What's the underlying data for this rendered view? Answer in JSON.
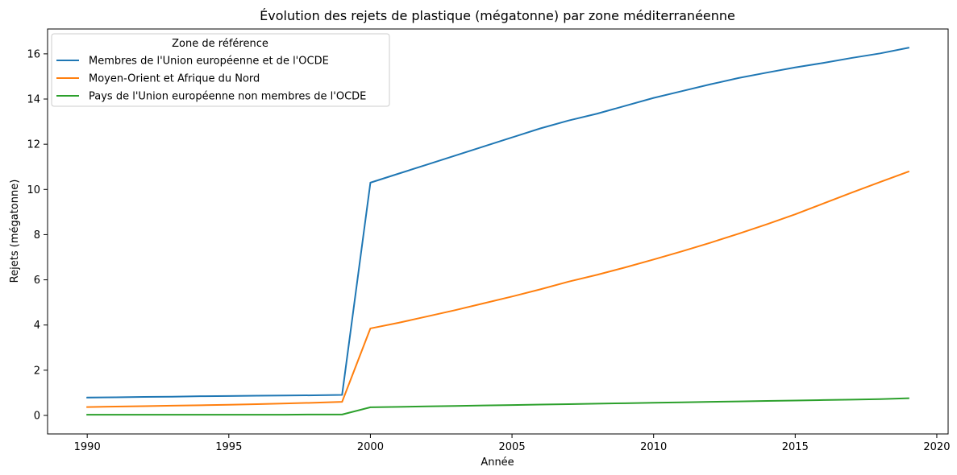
{
  "chart_data": {
    "type": "line",
    "title": "Évolution des rejets de plastique (mégatonne) par zone méditerranéenne",
    "xlabel": "Année",
    "ylabel": "Rejets (mégatonne)",
    "xlim": [
      1988.6,
      2020.4
    ],
    "ylim": [
      -0.82,
      17.1
    ],
    "xticks": [
      1990,
      1995,
      2000,
      2005,
      2010,
      2015,
      2020
    ],
    "yticks": [
      0,
      2,
      4,
      6,
      8,
      10,
      12,
      14,
      16
    ],
    "grid": false,
    "legend": {
      "title": "Zone de référence",
      "placement": "top-left"
    },
    "x": [
      1990,
      1991,
      1992,
      1993,
      1994,
      1995,
      1996,
      1997,
      1998,
      1999,
      2000,
      2001,
      2002,
      2003,
      2004,
      2005,
      2006,
      2007,
      2008,
      2009,
      2010,
      2011,
      2012,
      2013,
      2014,
      2015,
      2016,
      2017,
      2018,
      2019
    ],
    "series": [
      {
        "name": "Membres de l'Union européenne et de l'OCDE",
        "color": "#1f77b4",
        "values": [
          0.79,
          0.8,
          0.82,
          0.83,
          0.85,
          0.86,
          0.87,
          0.88,
          0.89,
          0.91,
          10.3,
          10.7,
          11.1,
          11.5,
          11.9,
          12.3,
          12.7,
          13.05,
          13.35,
          13.7,
          14.05,
          14.35,
          14.65,
          14.93,
          15.17,
          15.4,
          15.6,
          15.82,
          16.02,
          16.27
        ]
      },
      {
        "name": "Moyen-Orient et Afrique du Nord",
        "color": "#ff7f0e",
        "values": [
          0.37,
          0.39,
          0.41,
          0.43,
          0.45,
          0.47,
          0.5,
          0.53,
          0.56,
          0.6,
          3.85,
          4.1,
          4.38,
          4.66,
          4.96,
          5.26,
          5.58,
          5.92,
          6.22,
          6.55,
          6.9,
          7.26,
          7.64,
          8.04,
          8.46,
          8.9,
          9.38,
          9.86,
          10.33,
          10.79
        ]
      },
      {
        "name": "Pays de l'Union européenne non membres de l'OCDE",
        "color": "#2ca02c",
        "values": [
          0.03,
          0.03,
          0.03,
          0.03,
          0.03,
          0.03,
          0.03,
          0.03,
          0.04,
          0.04,
          0.36,
          0.38,
          0.4,
          0.42,
          0.44,
          0.46,
          0.48,
          0.5,
          0.52,
          0.54,
          0.56,
          0.58,
          0.6,
          0.62,
          0.64,
          0.66,
          0.68,
          0.7,
          0.72,
          0.76
        ]
      }
    ]
  }
}
